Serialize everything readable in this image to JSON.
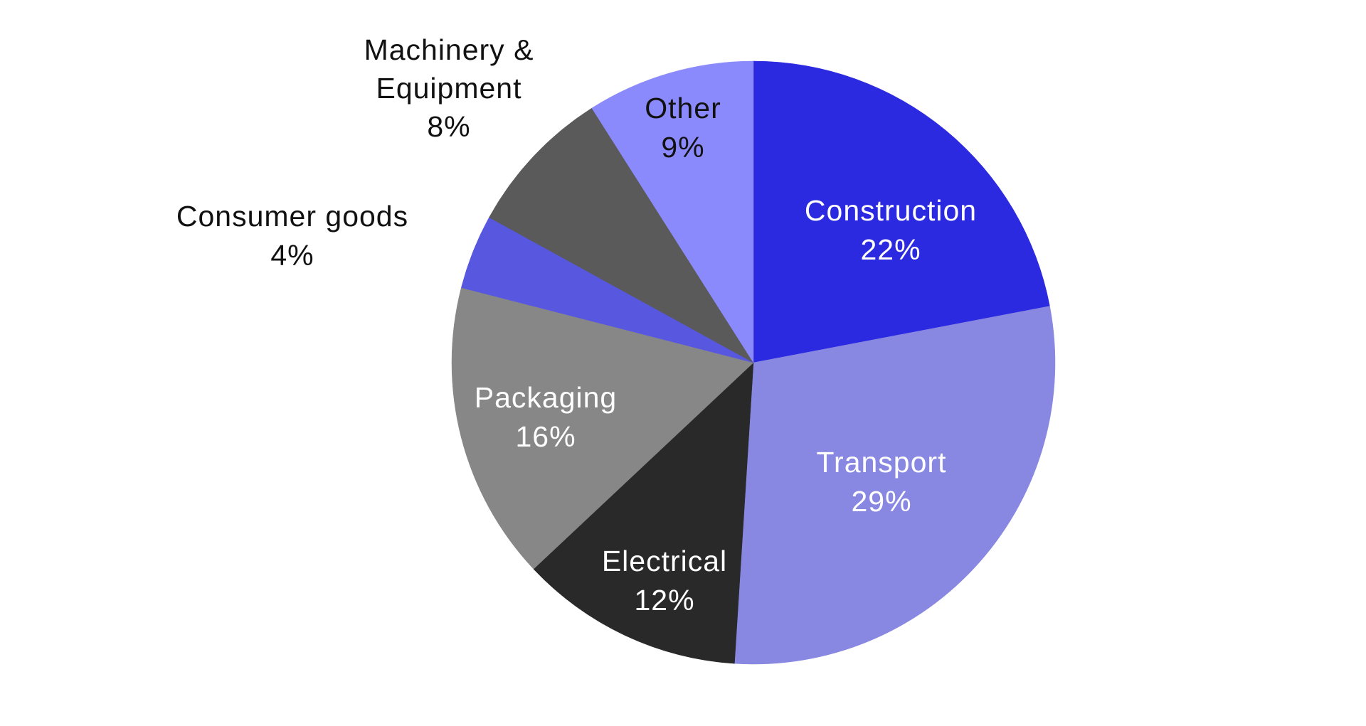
{
  "chart_data": {
    "type": "pie",
    "title": "",
    "start_angle_deg": 0,
    "direction": "clockwise",
    "slices": [
      {
        "label": "Construction",
        "value": 22,
        "value_label": "22%",
        "color": "#2c2ae0",
        "label_color": "#ffffff"
      },
      {
        "label": "Transport",
        "value": 29,
        "value_label": "29%",
        "color": "#8888e2",
        "label_color": "#ffffff"
      },
      {
        "label": "Electrical",
        "value": 12,
        "value_label": "12%",
        "color": "#292929",
        "label_color": "#ffffff"
      },
      {
        "label": "Packaging",
        "value": 16,
        "value_label": "16%",
        "color": "#878787",
        "label_color": "#ffffff"
      },
      {
        "label": "Consumer goods",
        "value": 4,
        "value_label": "4%",
        "color": "#5757e0",
        "label_color": "#111111"
      },
      {
        "label": "Machinery &",
        "label_line2": "Equipment",
        "value": 8,
        "value_label": "8%",
        "color": "#5a5a5a",
        "label_color": "#111111"
      },
      {
        "label": "Other",
        "value": 9,
        "value_label": "9%",
        "color": "#8a8afc",
        "label_color": "#111111"
      }
    ]
  }
}
